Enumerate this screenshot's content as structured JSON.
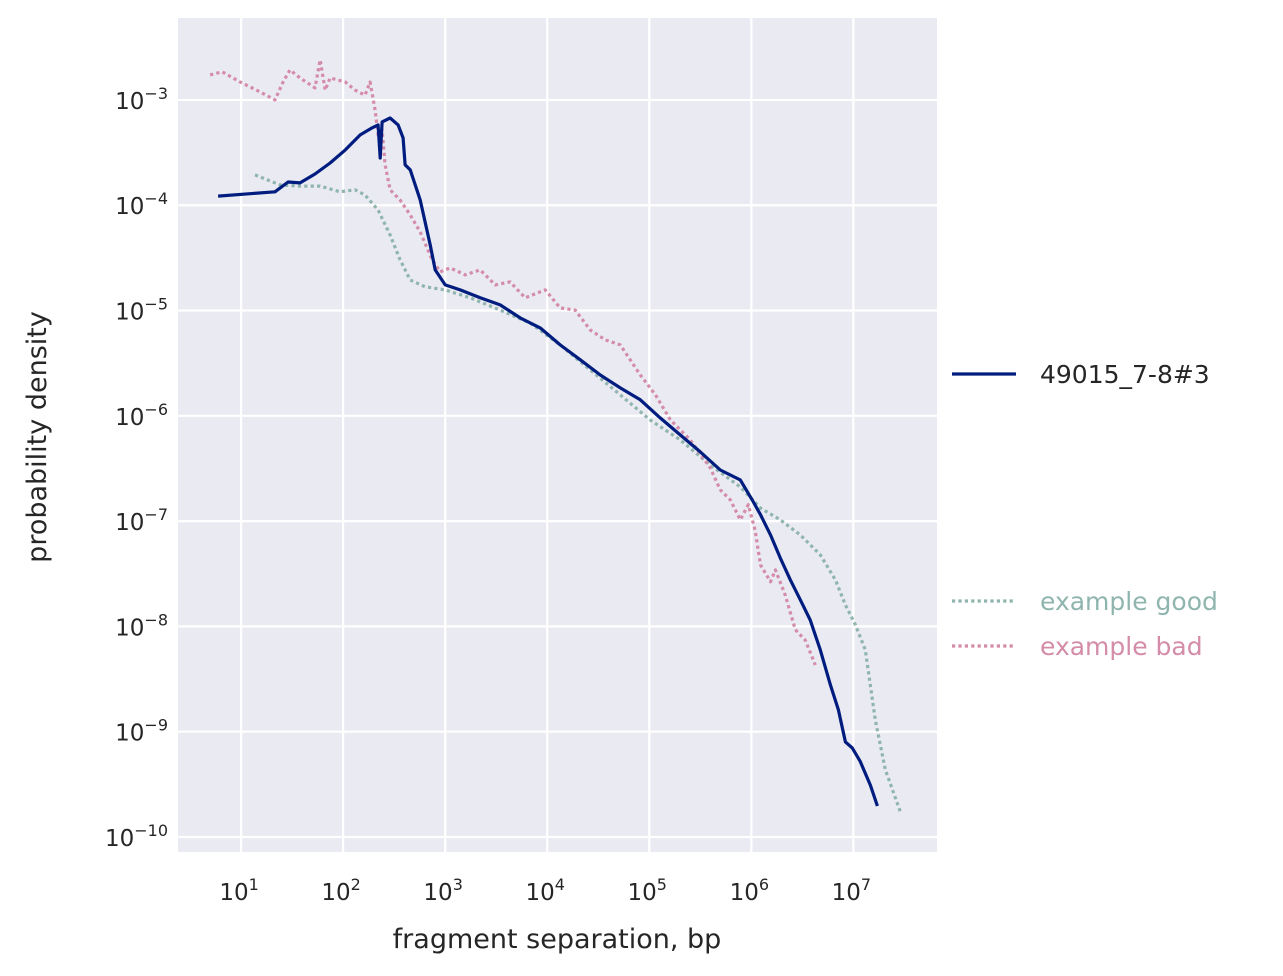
{
  "chart_data": {
    "type": "line",
    "xlabel": "fragment separation, bp",
    "ylabel": "probability density",
    "xscale": "log",
    "yscale": "log",
    "xlim": [
      2.41,
      66000000.0
    ],
    "ylim": [
      7.2e-11,
      0.006
    ],
    "grid": true,
    "background": "#EAEAF2",
    "legend_placement": "right, outside",
    "xticks": [
      {
        "base": "10",
        "exp": "1",
        "value": 10
      },
      {
        "base": "10",
        "exp": "2",
        "value": 100
      },
      {
        "base": "10",
        "exp": "3",
        "value": 1000
      },
      {
        "base": "10",
        "exp": "4",
        "value": 10000
      },
      {
        "base": "10",
        "exp": "5",
        "value": 100000
      },
      {
        "base": "10",
        "exp": "6",
        "value": 1000000
      },
      {
        "base": "10",
        "exp": "7",
        "value": 10000000
      }
    ],
    "yticks": [
      {
        "base": "10",
        "exp": "−3",
        "value": 0.001
      },
      {
        "base": "10",
        "exp": "−4",
        "value": 0.0001
      },
      {
        "base": "10",
        "exp": "−5",
        "value": 1e-05
      },
      {
        "base": "10",
        "exp": "−6",
        "value": 1e-06
      },
      {
        "base": "10",
        "exp": "−7",
        "value": 1e-07
      },
      {
        "base": "10",
        "exp": "−8",
        "value": 1e-08
      },
      {
        "base": "10",
        "exp": "−9",
        "value": 1e-09
      },
      {
        "base": "10",
        "exp": "−10",
        "value": 1e-10
      }
    ],
    "series": [
      {
        "name": "49015_7-8#3",
        "color": "#001C7F",
        "style": "solid",
        "x": [
          5.96,
          21.5,
          28.9,
          37.8,
          53,
          74.6,
          105,
          147,
          192,
          220,
          231,
          241,
          289,
          346,
          387,
          405,
          454,
          569,
          713,
          798,
          1000,
          1403,
          2203,
          3459,
          5430,
          8530,
          13400,
          21100,
          33100,
          52000,
          81700,
          128000,
          201000,
          316000,
          497000,
          780000,
          1020000,
          1230000,
          1540000,
          1920000,
          2410000,
          3020000,
          3780000,
          4740000,
          5960000,
          7130000,
          8350000,
          9770000,
          11700000,
          14700000,
          17200000
        ],
        "y": [
          0.000122,
          0.000134,
          0.000166,
          0.000163,
          0.000198,
          0.000252,
          0.000335,
          0.000465,
          0.000542,
          0.000579,
          0.000281,
          0.000618,
          0.000674,
          0.000579,
          0.000436,
          0.000242,
          0.000217,
          0.000112,
          4.2e-05,
          2.43e-05,
          1.75e-05,
          1.57e-05,
          1.32e-05,
          1.13e-05,
          8.5e-06,
          6.84e-06,
          4.71e-06,
          3.4e-06,
          2.44e-06,
          1.84e-06,
          1.42e-06,
          9.55e-07,
          6.59e-07,
          4.54e-07,
          3.06e-07,
          2.46e-07,
          1.59e-07,
          1.15e-07,
          7.4e-08,
          4.48e-08,
          2.77e-08,
          1.79e-08,
          1.15e-08,
          5.98e-09,
          2.78e-09,
          1.61e-09,
          8e-10,
          7e-10,
          5.2e-10,
          3.1e-10,
          1.97e-10
        ]
      },
      {
        "name": "example good",
        "color": "#8FB5AE",
        "style": "dotted",
        "x": [
          13.7,
          24.1,
          37.8,
          59.5,
          93.5,
          131,
          164,
          220,
          289,
          362,
          454,
          637,
          1000,
          1758,
          3459,
          6810,
          13400,
          26400,
          52000,
          102000,
          201000,
          396000,
          780000,
          1230000,
          1920000,
          3020000,
          4740000,
          6660000,
          8350000,
          10500000,
          13100000,
          16400000,
          20600000,
          28900000
        ],
        "y": [
          0.000194,
          0.000156,
          0.000152,
          0.000152,
          0.000134,
          0.00014,
          0.000125,
          9e-05,
          5.22e-05,
          3.03e-05,
          1.95e-05,
          1.68e-05,
          1.57e-05,
          1.32e-05,
          1.01e-05,
          7.6e-06,
          4.71e-06,
          2.73e-06,
          1.58e-06,
          9.14e-07,
          5.9e-07,
          3.42e-07,
          2.11e-07,
          1.33e-07,
          1.03e-07,
          7.4e-08,
          4.78e-08,
          2.77e-08,
          1.6e-08,
          1.03e-08,
          5.98e-09,
          1.29e-09,
          4.33e-10,
          1.73e-10
        ]
      },
      {
        "name": "example bad",
        "color": "#D48CA8",
        "style": "dotted",
        "x": [
          4.97,
          6.52,
          9.78,
          15.4,
          21.5,
          25.8,
          30.2,
          37.8,
          53,
          59.5,
          66.7,
          74.6,
          105,
          131,
          164,
          184,
          206,
          220,
          241,
          258,
          289,
          362,
          454,
          569,
          746,
          893,
          1120,
          1570,
          2203,
          3090,
          4330,
          6080,
          9550,
          13400,
          18800,
          26400,
          37100,
          52000,
          81700,
          115000,
          161000,
          252000,
          396000,
          497000,
          622000,
          780000,
          935000,
          1090000,
          1230000,
          1540000,
          1720000,
          2150000,
          2700000,
          3380000,
          4240000
        ],
        "y": [
          0.00173,
          0.00185,
          0.00148,
          0.00119,
          0.001,
          0.00148,
          0.00193,
          0.00162,
          0.0013,
          0.0024,
          0.00124,
          0.00162,
          0.00148,
          0.00124,
          0.00111,
          0.00148,
          0.0008,
          0.000465,
          0.000519,
          0.000242,
          0.00014,
          0.000112,
          8.1e-05,
          5.57e-05,
          3.03e-05,
          2.33e-05,
          2.54e-05,
          2.18e-05,
          2.43e-05,
          1.75e-05,
          1.87e-05,
          1.32e-05,
          1.57e-05,
          1.06e-05,
          1.01e-05,
          6.55e-06,
          5.26e-06,
          4.71e-06,
          2.44e-06,
          1.58e-06,
          9.14e-07,
          5.9e-07,
          3.2e-07,
          1.98e-07,
          1.59e-07,
          1.03e-07,
          1.43e-07,
          8.2e-08,
          3.84e-08,
          2.65e-08,
          3.44e-08,
          1.99e-08,
          9.3e-09,
          7.4e-09,
          4.3e-09
        ]
      }
    ]
  }
}
